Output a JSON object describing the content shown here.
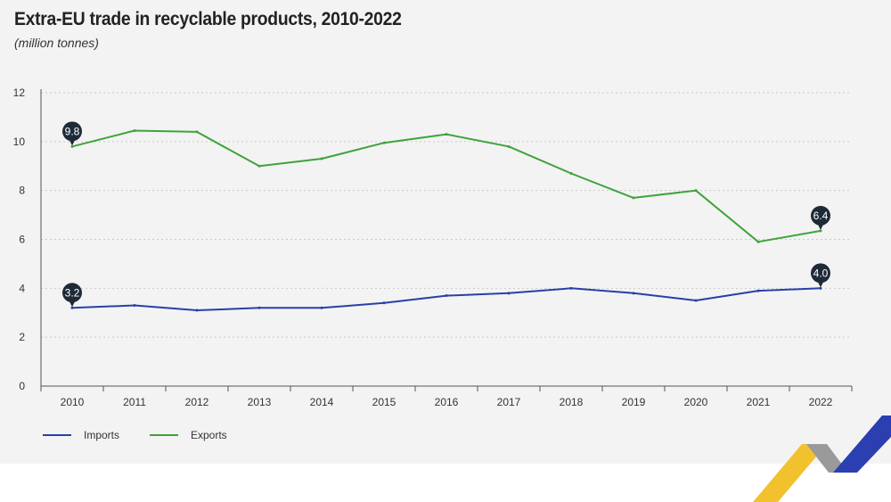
{
  "header": {
    "title": "Extra-EU trade in recyclable products, 2010-2022",
    "subtitle": "(million tonnes)"
  },
  "chart_data": {
    "type": "line",
    "title": "Extra-EU trade in recyclable products, 2010-2022",
    "subtitle": "(million tonnes)",
    "xlabel": "",
    "ylabel": "",
    "ylim": [
      0,
      12
    ],
    "yticks": [
      0,
      2,
      4,
      6,
      8,
      10,
      12
    ],
    "grid": true,
    "legend_position": "bottom-left",
    "categories": [
      "2010",
      "2011",
      "2012",
      "2013",
      "2014",
      "2015",
      "2016",
      "2017",
      "2018",
      "2019",
      "2020",
      "2021",
      "2022"
    ],
    "series": [
      {
        "name": "Imports",
        "color": "#2a3ea8",
        "values": [
          3.2,
          3.3,
          3.1,
          3.2,
          3.2,
          3.4,
          3.7,
          3.8,
          4.0,
          3.8,
          3.5,
          3.9,
          4.0
        ]
      },
      {
        "name": "Exports",
        "color": "#3fa33a",
        "values": [
          9.8,
          10.45,
          10.4,
          9.0,
          9.3,
          9.95,
          10.3,
          9.8,
          8.7,
          7.7,
          8.0,
          5.9,
          6.35
        ]
      }
    ],
    "annotations": [
      {
        "series": "Exports",
        "x": "2010",
        "label": "9.8"
      },
      {
        "series": "Exports",
        "x": "2022",
        "label": "6.4"
      },
      {
        "series": "Imports",
        "x": "2010",
        "label": "3.2"
      },
      {
        "series": "Imports",
        "x": "2022",
        "label": "4.0"
      }
    ]
  },
  "colors": {
    "imports": "#2a3ea8",
    "exports": "#3fa33a",
    "bubble": "#1f2a38",
    "logo_yellow": "#f2c12e",
    "logo_grey": "#9a9a9a",
    "logo_blue": "#2b3fb0"
  }
}
